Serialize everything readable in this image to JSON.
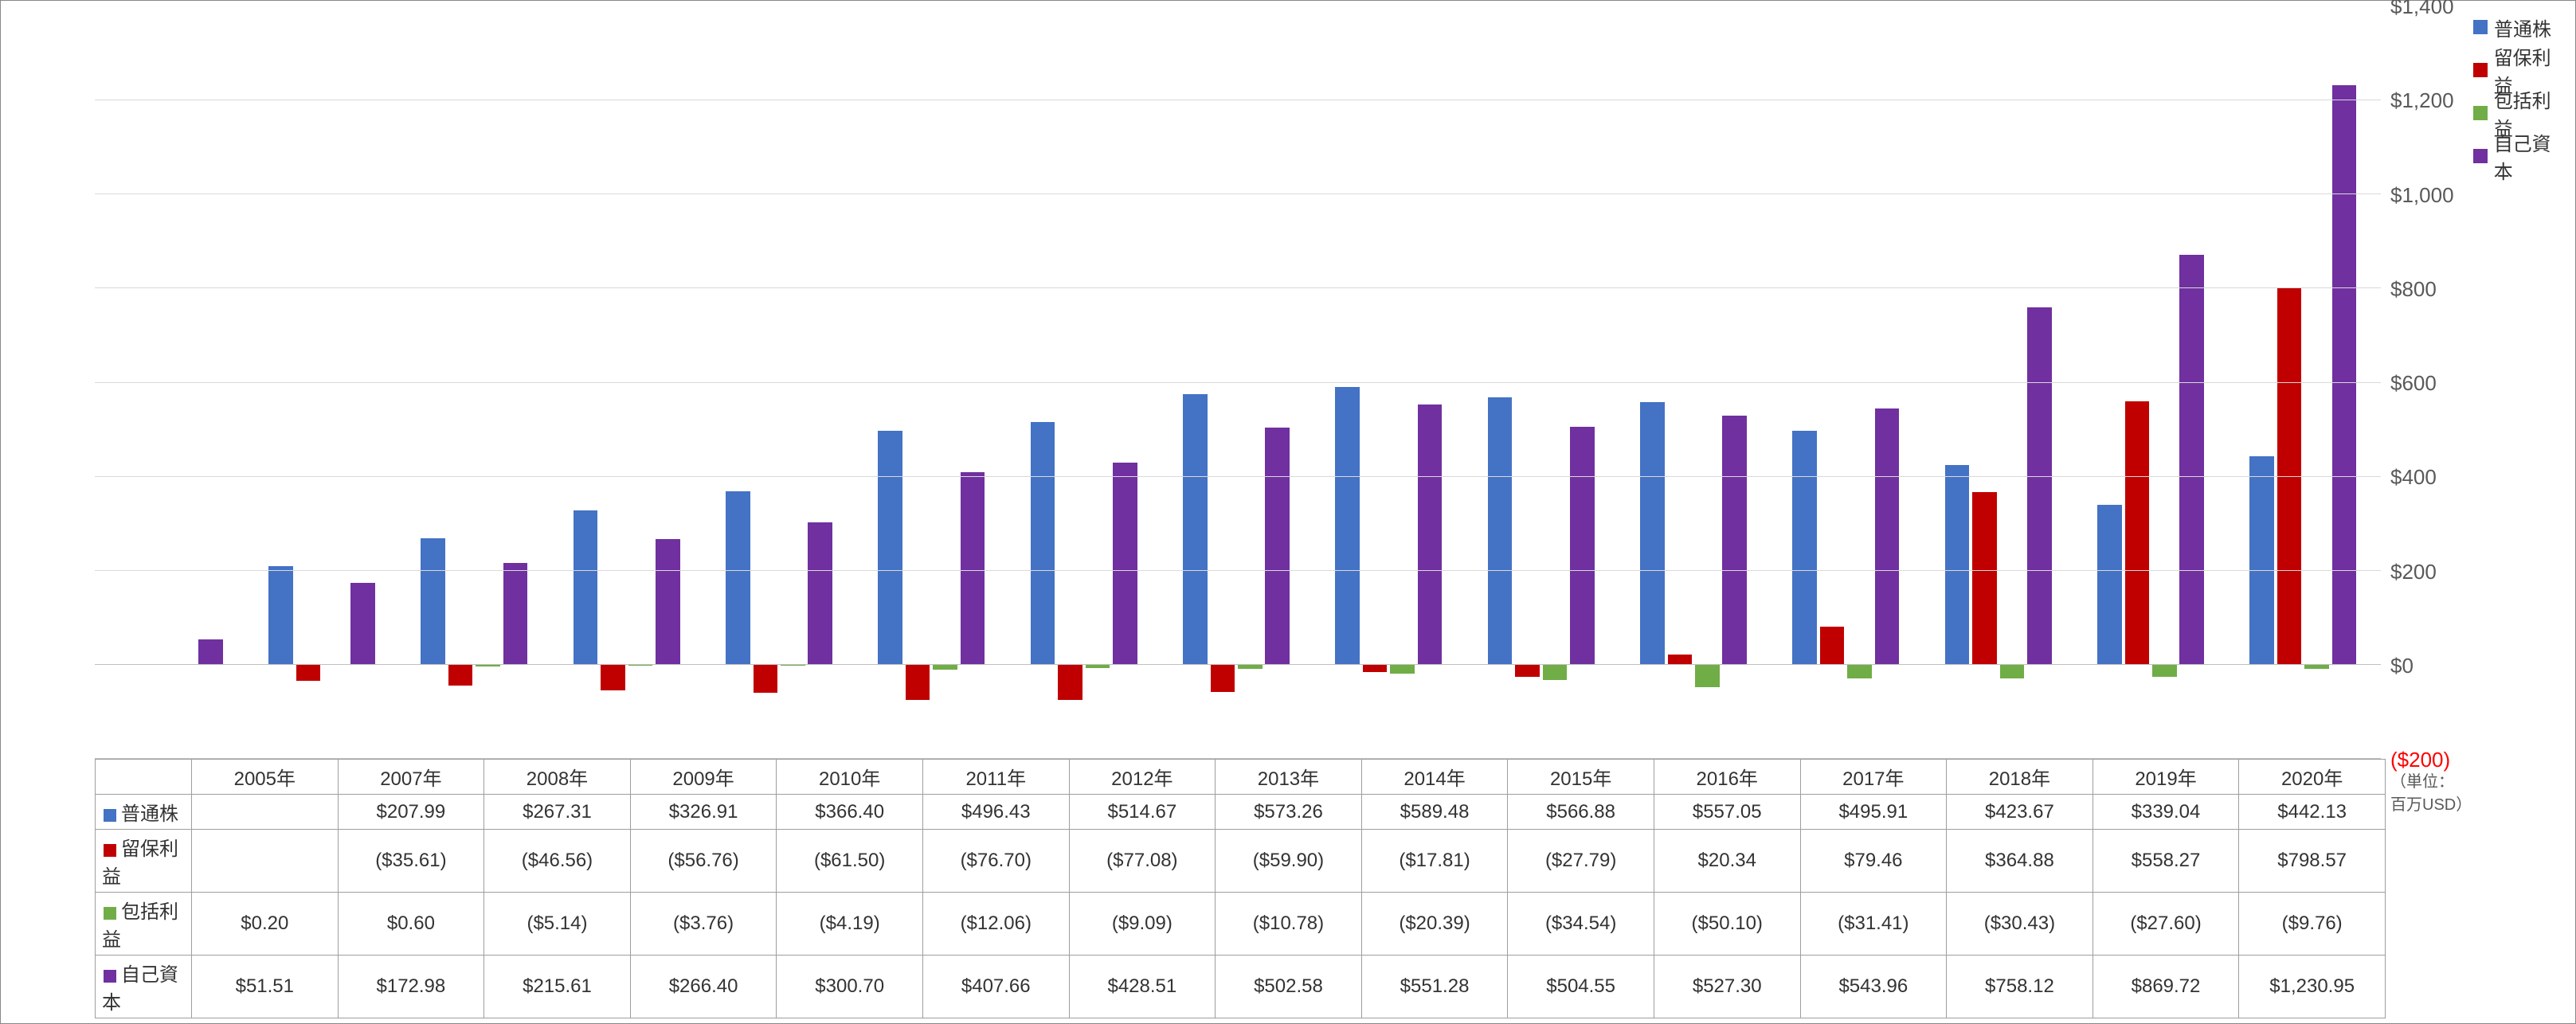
{
  "chart": {
    "type": "grouped-bar",
    "background_color": "#ffffff",
    "grid_color": "#d9d9d9",
    "axis_color": "#bfbfbf",
    "ymin": -200,
    "ymax": 1400,
    "ytick_step": 200,
    "yticks": [
      {
        "v": -200,
        "label": "($200)",
        "color": "#ff0000"
      },
      {
        "v": 0,
        "label": "$0",
        "color": "#595959"
      },
      {
        "v": 200,
        "label": "$200",
        "color": "#595959"
      },
      {
        "v": 400,
        "label": "$400",
        "color": "#595959"
      },
      {
        "v": 600,
        "label": "$600",
        "color": "#595959"
      },
      {
        "v": 800,
        "label": "$800",
        "color": "#595959"
      },
      {
        "v": 1000,
        "label": "$1,000",
        "color": "#595959"
      },
      {
        "v": 1200,
        "label": "$1,200",
        "color": "#595959"
      },
      {
        "v": 1400,
        "label": "$1,400",
        "color": "#595959"
      }
    ],
    "unit_note": "（単位：百万USD）",
    "categories": [
      "2005年",
      "2007年",
      "2008年",
      "2009年",
      "2010年",
      "2011年",
      "2012年",
      "2013年",
      "2014年",
      "2015年",
      "2016年",
      "2017年",
      "2018年",
      "2019年",
      "2020年"
    ],
    "series": [
      {
        "key": "common_stock",
        "name": "普通株",
        "color": "#4472c4"
      },
      {
        "key": "retained_earnings",
        "name": "留保利益",
        "color": "#c00000"
      },
      {
        "key": "comprehensive_income",
        "name": "包括利益",
        "color": "#70ad47"
      },
      {
        "key": "equity",
        "name": "自己資本",
        "color": "#7030a0"
      }
    ],
    "bar_group_width": 0.72,
    "bar_gap": 0.02,
    "label_fontsize": 24,
    "tick_fontsize": 26
  },
  "data": {
    "common_stock": [
      null,
      207.99,
      267.31,
      326.91,
      366.4,
      496.43,
      514.67,
      573.26,
      589.48,
      566.88,
      557.05,
      495.91,
      423.67,
      339.04,
      442.13
    ],
    "retained_earnings": [
      null,
      -35.61,
      -46.56,
      -56.76,
      -61.5,
      -76.7,
      -77.08,
      -59.9,
      -17.81,
      -27.79,
      20.34,
      79.46,
      364.88,
      558.27,
      798.57
    ],
    "comprehensive_income": [
      0.2,
      0.6,
      -5.14,
      -3.76,
      -4.19,
      -12.06,
      -9.09,
      -10.78,
      -20.39,
      -34.54,
      -50.1,
      -31.41,
      -30.43,
      -27.6,
      -9.76
    ],
    "equity": [
      51.51,
      172.98,
      215.61,
      266.4,
      300.7,
      407.66,
      428.51,
      502.58,
      551.28,
      504.55,
      527.3,
      543.96,
      758.12,
      869.72,
      1230.95
    ]
  },
  "table": {
    "display": {
      "common_stock": [
        "",
        "$207.99",
        "$267.31",
        "$326.91",
        "$366.40",
        "$496.43",
        "$514.67",
        "$573.26",
        "$589.48",
        "$566.88",
        "$557.05",
        "$495.91",
        "$423.67",
        "$339.04",
        "$442.13"
      ],
      "retained_earnings": [
        "",
        "($35.61)",
        "($46.56)",
        "($56.76)",
        "($61.50)",
        "($76.70)",
        "($77.08)",
        "($59.90)",
        "($17.81)",
        "($27.79)",
        "$20.34",
        "$79.46",
        "$364.88",
        "$558.27",
        "$798.57"
      ],
      "comprehensive_income": [
        "$0.20",
        "$0.60",
        "($5.14)",
        "($3.76)",
        "($4.19)",
        "($12.06)",
        "($9.09)",
        "($10.78)",
        "($20.39)",
        "($34.54)",
        "($50.10)",
        "($31.41)",
        "($30.43)",
        "($27.60)",
        "($9.76)"
      ],
      "equity": [
        "$51.51",
        "$172.98",
        "$215.61",
        "$266.40",
        "$300.70",
        "$407.66",
        "$428.51",
        "$502.58",
        "$551.28",
        "$504.55",
        "$527.30",
        "$543.96",
        "$758.12",
        "$869.72",
        "$1,230.95"
      ]
    }
  }
}
